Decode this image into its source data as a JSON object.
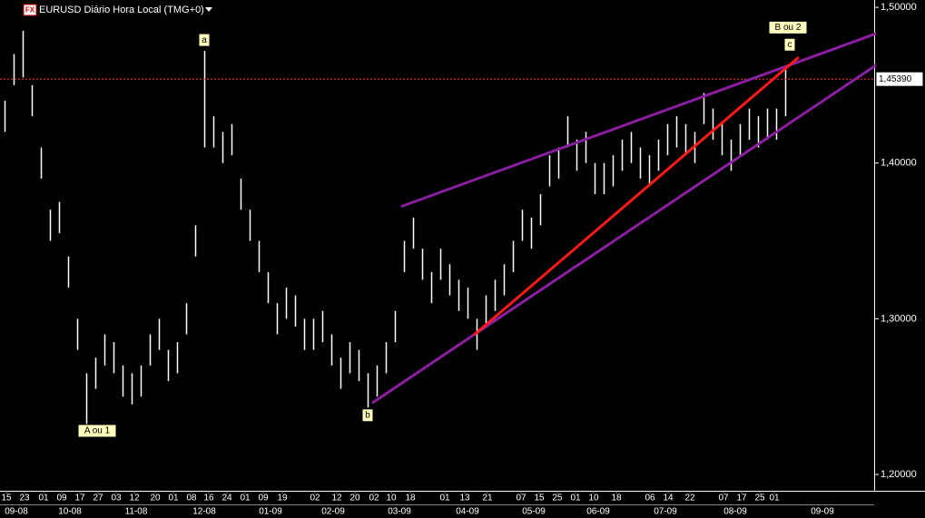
{
  "chart_data": {
    "type": "ohlc",
    "title": "EURUSD Diário Hora Local (TMG+0)",
    "symbol_icon": "FX",
    "color": "#ffffff",
    "high": [
      1.44,
      1.47,
      1.485,
      1.45,
      1.41,
      1.37,
      1.375,
      1.34,
      1.3,
      1.265,
      1.275,
      1.29,
      1.285,
      1.27,
      1.265,
      1.27,
      1.29,
      1.3,
      1.28,
      1.285,
      1.31,
      1.36,
      1.472,
      1.43,
      1.42,
      1.425,
      1.39,
      1.37,
      1.35,
      1.33,
      1.31,
      1.32,
      1.315,
      1.3,
      1.3,
      1.305,
      1.29,
      1.275,
      1.285,
      1.28,
      1.265,
      1.27,
      1.285,
      1.305,
      1.35,
      1.365,
      1.345,
      1.33,
      1.345,
      1.335,
      1.325,
      1.32,
      1.3,
      1.315,
      1.325,
      1.335,
      1.35,
      1.37,
      1.365,
      1.38,
      1.405,
      1.41,
      1.43,
      1.415,
      1.42,
      1.4,
      1.4,
      1.405,
      1.415,
      1.42,
      1.41,
      1.405,
      1.415,
      1.425,
      1.43,
      1.425,
      1.42,
      1.445,
      1.435,
      1.425,
      1.415,
      1.425,
      1.435,
      1.43,
      1.435,
      1.435,
      1.46
    ],
    "low": [
      1.42,
      1.45,
      1.455,
      1.43,
      1.39,
      1.35,
      1.355,
      1.32,
      1.28,
      1.232,
      1.255,
      1.27,
      1.265,
      1.25,
      1.245,
      1.25,
      1.27,
      1.28,
      1.26,
      1.265,
      1.29,
      1.34,
      1.41,
      1.41,
      1.4,
      1.405,
      1.37,
      1.35,
      1.33,
      1.31,
      1.29,
      1.3,
      1.295,
      1.28,
      1.28,
      1.285,
      1.27,
      1.255,
      1.265,
      1.26,
      1.243,
      1.25,
      1.265,
      1.285,
      1.33,
      1.345,
      1.325,
      1.31,
      1.325,
      1.315,
      1.305,
      1.3,
      1.28,
      1.295,
      1.305,
      1.315,
      1.33,
      1.35,
      1.345,
      1.36,
      1.385,
      1.39,
      1.41,
      1.395,
      1.4,
      1.38,
      1.38,
      1.385,
      1.395,
      1.4,
      1.39,
      1.385,
      1.395,
      1.405,
      1.41,
      1.405,
      1.4,
      1.425,
      1.415,
      1.405,
      1.395,
      1.405,
      1.415,
      1.41,
      1.415,
      1.415,
      1.43
    ],
    "xlim": [
      -0.5,
      95.8
    ],
    "ylim": [
      1.1901,
      1.5047
    ],
    "yticks": [
      {
        "value": 1.5,
        "label": "1,50000"
      },
      {
        "value": 1.4,
        "label": "1,40000"
      },
      {
        "value": 1.3,
        "label": "1,30000"
      },
      {
        "value": 1.2,
        "label": "1,20000"
      }
    ],
    "xticks": [
      {
        "value": 0.2,
        "label": "15"
      },
      {
        "value": 2.2,
        "label": "23"
      },
      {
        "value": 4.3,
        "label": "01"
      },
      {
        "value": 6.3,
        "label": "09"
      },
      {
        "value": 8.3,
        "label": "17"
      },
      {
        "value": 10.3,
        "label": "27"
      },
      {
        "value": 12.3,
        "label": "03"
      },
      {
        "value": 14.3,
        "label": "12"
      },
      {
        "value": 16.6,
        "label": "20"
      },
      {
        "value": 18.6,
        "label": "01"
      },
      {
        "value": 20.6,
        "label": "08"
      },
      {
        "value": 22.5,
        "label": "16"
      },
      {
        "value": 24.5,
        "label": "24"
      },
      {
        "value": 26.5,
        "label": "01"
      },
      {
        "value": 28.5,
        "label": "09"
      },
      {
        "value": 30.6,
        "label": "19"
      },
      {
        "value": 34.2,
        "label": "02"
      },
      {
        "value": 36.6,
        "label": "12"
      },
      {
        "value": 38.6,
        "label": "20"
      },
      {
        "value": 40.7,
        "label": "02"
      },
      {
        "value": 42.6,
        "label": "10"
      },
      {
        "value": 44.7,
        "label": "18"
      },
      {
        "value": 48.5,
        "label": "01"
      },
      {
        "value": 50.7,
        "label": "13"
      },
      {
        "value": 53.2,
        "label": "21"
      },
      {
        "value": 56.9,
        "label": "07"
      },
      {
        "value": 58.9,
        "label": "15"
      },
      {
        "value": 60.9,
        "label": "25"
      },
      {
        "value": 62.9,
        "label": "01"
      },
      {
        "value": 64.9,
        "label": "10"
      },
      {
        "value": 67.4,
        "label": "18"
      },
      {
        "value": 71.1,
        "label": "06"
      },
      {
        "value": 73.1,
        "label": "14"
      },
      {
        "value": 75.5,
        "label": "22"
      },
      {
        "value": 79.2,
        "label": "07"
      },
      {
        "value": 81.2,
        "label": "17"
      },
      {
        "value": 83.2,
        "label": "25"
      },
      {
        "value": 84.8,
        "label": "01"
      }
    ],
    "month_ticks": [
      {
        "value": 1.3,
        "label": "09-08"
      },
      {
        "value": 7.2,
        "label": "10-08"
      },
      {
        "value": 14.5,
        "label": "11-08"
      },
      {
        "value": 22,
        "label": "12-08"
      },
      {
        "value": 29.3,
        "label": "01-09"
      },
      {
        "value": 36.2,
        "label": "02-09"
      },
      {
        "value": 43.5,
        "label": "03-09"
      },
      {
        "value": 51,
        "label": "04-09"
      },
      {
        "value": 58.3,
        "label": "05-09"
      },
      {
        "value": 65.4,
        "label": "06-09"
      },
      {
        "value": 72.8,
        "label": "07-09"
      },
      {
        "value": 80.5,
        "label": "08-09"
      },
      {
        "value": 90.1,
        "label": "09-09"
      }
    ],
    "last_price": {
      "value": 1.4539,
      "label": "1,45390",
      "color": "#ff3030"
    },
    "trend_lines": [
      {
        "color": "#8a1fa0",
        "x": [
          43.7,
          96.0
        ],
        "y": [
          1.3721,
          1.4831
        ]
      },
      {
        "color": "#8a1fa0",
        "x": [
          40.5,
          96.0
        ],
        "y": [
          1.2459,
          1.4628
        ]
      },
      {
        "color": "#ff1a1a",
        "x": [
          51.7,
          87.5
        ],
        "y": [
          1.2895,
          1.468
        ]
      }
    ],
    "annotations": [
      {
        "text": "a",
        "x": 22,
        "y": 1.479
      },
      {
        "text": "A ou 1",
        "x": 10.2,
        "y": 1.228
      },
      {
        "text": "b",
        "x": 40,
        "y": 1.238
      },
      {
        "text": "B ou 2",
        "x": 86.3,
        "y": 1.487
      },
      {
        "text": "c",
        "x": 86.5,
        "y": 1.476
      }
    ]
  }
}
